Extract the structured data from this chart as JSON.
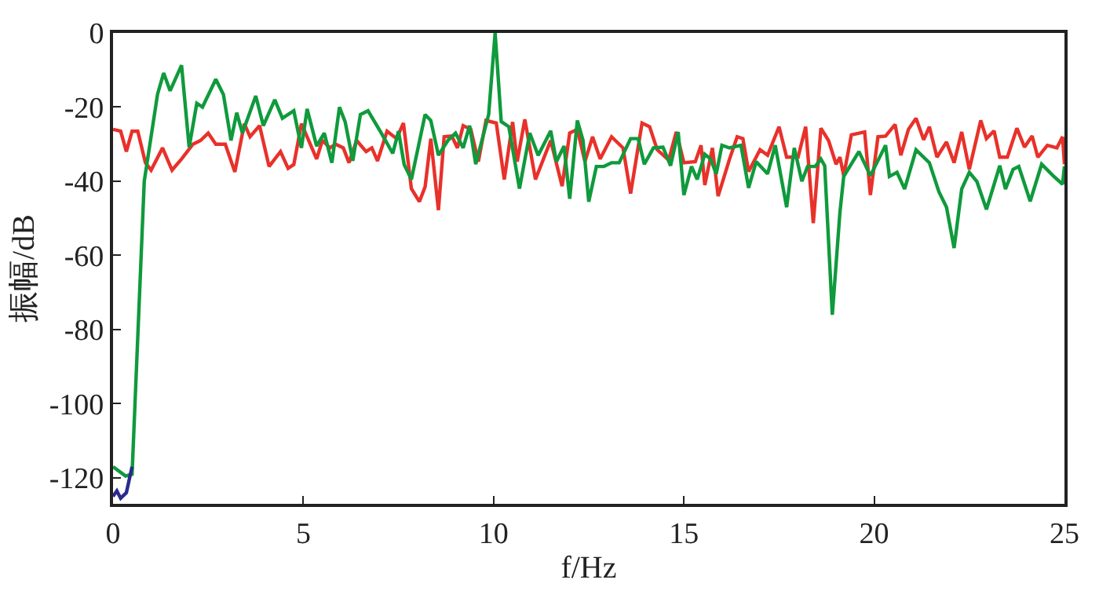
{
  "chart_data": {
    "type": "line",
    "xlabel": "f/Hz",
    "ylabel": "振幅/dB",
    "xlim": [
      0,
      25
    ],
    "ylim": [
      -127,
      0
    ],
    "xticks": [
      0,
      5,
      10,
      15,
      20,
      25
    ],
    "yticks": [
      -120,
      -100,
      -80,
      -60,
      -40,
      -20,
      0
    ],
    "marker": "none",
    "line_style": "solid",
    "series": [
      {
        "color": "#e8312a",
        "x": [
          0,
          0.2,
          0.35,
          0.5,
          0.65,
          0.85,
          1.0,
          1.3,
          1.55,
          1.8,
          2.1,
          2.3,
          2.5,
          2.7,
          2.95,
          3.2,
          3.45,
          3.6,
          3.85,
          4.1,
          4.4,
          4.6,
          4.75,
          4.95,
          5.1,
          5.35,
          5.5,
          5.7,
          5.85,
          6.05,
          6.2,
          6.4,
          6.65,
          6.8,
          6.95,
          7.2,
          7.45,
          7.63,
          7.84,
          8.05,
          8.2,
          8.35,
          8.55,
          8.7,
          8.9,
          9.05,
          9.2,
          9.4,
          9.6,
          9.8,
          10.07,
          10.28,
          10.5,
          10.62,
          10.82,
          11.1,
          11.5,
          11.8,
          12.0,
          12.2,
          12.4,
          12.6,
          12.8,
          13.1,
          13.4,
          13.6,
          13.9,
          14.1,
          14.3,
          14.6,
          14.8,
          15.0,
          15.3,
          15.45,
          15.55,
          15.75,
          15.9,
          16.2,
          16.4,
          16.55,
          16.7,
          17.0,
          17.2,
          17.5,
          17.7,
          18.0,
          18.2,
          18.4,
          18.6,
          18.8,
          19.0,
          19.1,
          19.2,
          19.4,
          19.75,
          19.9,
          20.1,
          20.3,
          20.55,
          20.7,
          20.9,
          21.1,
          21.3,
          21.45,
          21.65,
          21.9,
          22.1,
          22.3,
          22.5,
          22.8,
          22.95,
          23.15,
          23.3,
          23.5,
          23.75,
          23.95,
          24.15,
          24.3,
          24.55,
          24.8,
          24.95,
          25.0
        ],
        "values": [
          -26,
          -26.5,
          -32,
          -26.5,
          -26.5,
          -35,
          -37,
          -31,
          -37,
          -34,
          -30,
          -29,
          -27,
          -30,
          -30,
          -37.5,
          -24.5,
          -28,
          -25,
          -36,
          -32,
          -36.5,
          -35.5,
          -24.5,
          -28,
          -34,
          -29,
          -31,
          -30,
          -31,
          -35,
          -29,
          -32,
          -31,
          -34.5,
          -26.5,
          -28.5,
          -24.3,
          -42,
          -45.5,
          -41.5,
          -28.5,
          -47.8,
          -28,
          -27.8,
          -31,
          -25,
          -26,
          -34.7,
          -23.6,
          -24.3,
          -39.5,
          -24,
          -34.7,
          -23.3,
          -39.5,
          -29,
          -41.3,
          -27,
          -26,
          -34.7,
          -28,
          -34,
          -28,
          -31,
          -43.3,
          -24.3,
          -25.3,
          -31.5,
          -34.3,
          -26.7,
          -35,
          -34.7,
          -30.3,
          -41,
          -31,
          -44,
          -34,
          -28,
          -28.5,
          -37.4,
          -31.5,
          -33,
          -25.3,
          -33.5,
          -33.5,
          -25.3,
          -51.3,
          -25.7,
          -29,
          -35.4,
          -33.5,
          -38.5,
          -27.5,
          -26.7,
          -43.7,
          -28,
          -27.8,
          -24.7,
          -33,
          -26,
          -23,
          -28.8,
          -25.3,
          -33.5,
          -29.4,
          -35,
          -26.7,
          -36.8,
          -23.6,
          -28.5,
          -26.4,
          -33.5,
          -33.5,
          -25.7,
          -30.8,
          -27.8,
          -33.5,
          -30.3,
          -31,
          -28,
          -35.4
        ]
      },
      {
        "color": "#0f9a3c",
        "x": [
          0,
          0.33,
          0.5,
          0.82,
          1.17,
          1.33,
          1.5,
          1.8,
          2.0,
          2.2,
          2.35,
          2.7,
          2.9,
          3.1,
          3.25,
          3.4,
          3.75,
          3.95,
          4.25,
          4.45,
          4.75,
          4.95,
          5.1,
          5.35,
          5.55,
          5.75,
          5.95,
          6.1,
          6.3,
          6.5,
          6.7,
          7.05,
          7.35,
          7.5,
          7.65,
          7.84,
          8.2,
          8.35,
          8.55,
          8.8,
          9.0,
          9.2,
          9.37,
          9.53,
          9.87,
          10.04,
          10.2,
          10.4,
          10.68,
          10.95,
          11.17,
          11.5,
          11.65,
          11.85,
          12.0,
          12.2,
          12.35,
          12.5,
          12.7,
          12.9,
          13.1,
          13.3,
          13.6,
          13.8,
          13.96,
          14.2,
          14.45,
          14.65,
          14.85,
          15.0,
          15.2,
          15.35,
          15.55,
          15.7,
          15.85,
          16.0,
          16.2,
          16.5,
          16.7,
          16.9,
          17.2,
          17.4,
          17.7,
          17.9,
          18.1,
          18.25,
          18.45,
          18.6,
          18.7,
          18.9,
          19.1,
          19.2,
          19.6,
          19.9,
          20.3,
          20.4,
          20.6,
          20.8,
          21.1,
          21.45,
          21.7,
          21.9,
          22.1,
          22.3,
          22.5,
          22.7,
          22.95,
          23.3,
          23.45,
          23.65,
          23.8,
          24.1,
          24.4,
          24.7,
          24.95,
          25.0
        ],
        "values": [
          -117,
          -119.5,
          -119,
          -40,
          -16.5,
          -10.8,
          -15.6,
          -8.7,
          -30.8,
          -19,
          -20,
          -12.5,
          -16.6,
          -29,
          -21.5,
          -27,
          -17,
          -25,
          -18,
          -23,
          -21,
          -31,
          -20.5,
          -30.5,
          -27,
          -35,
          -20,
          -24,
          -34.5,
          -22,
          -21,
          -27,
          -32.5,
          -26.5,
          -35.5,
          -39.5,
          -22,
          -23.6,
          -33,
          -29,
          -27,
          -31,
          -25,
          -35.4,
          -22,
          0,
          -23.9,
          -25.3,
          -42,
          -27,
          -33,
          -26.4,
          -34.7,
          -30.5,
          -44.7,
          -23.6,
          -29,
          -45.5,
          -36,
          -36,
          -35,
          -35,
          -28.5,
          -28.5,
          -35.4,
          -31,
          -30.8,
          -35.8,
          -26.7,
          -43.7,
          -36,
          -39.5,
          -32.7,
          -34,
          -38,
          -30.3,
          -31,
          -30.3,
          -41.8,
          -34.7,
          -38,
          -30.3,
          -47,
          -31,
          -40,
          -36,
          -36,
          -34,
          -35.8,
          -76,
          -48.4,
          -38.7,
          -32,
          -38.5,
          -30.3,
          -38.7,
          -37.6,
          -42.1,
          -31.5,
          -35,
          -42.8,
          -47,
          -58,
          -42.1,
          -37.6,
          -40.1,
          -47.6,
          -35.8,
          -42.1,
          -36.8,
          -36,
          -45.4,
          -35.4,
          -38.5,
          -40.8,
          -36
        ]
      },
      {
        "color": "#2b2a8c",
        "x": [
          0,
          0.1,
          0.2,
          0.35,
          0.5
        ],
        "values": [
          -125,
          -123.5,
          -125.5,
          -124,
          -117
        ]
      }
    ]
  }
}
